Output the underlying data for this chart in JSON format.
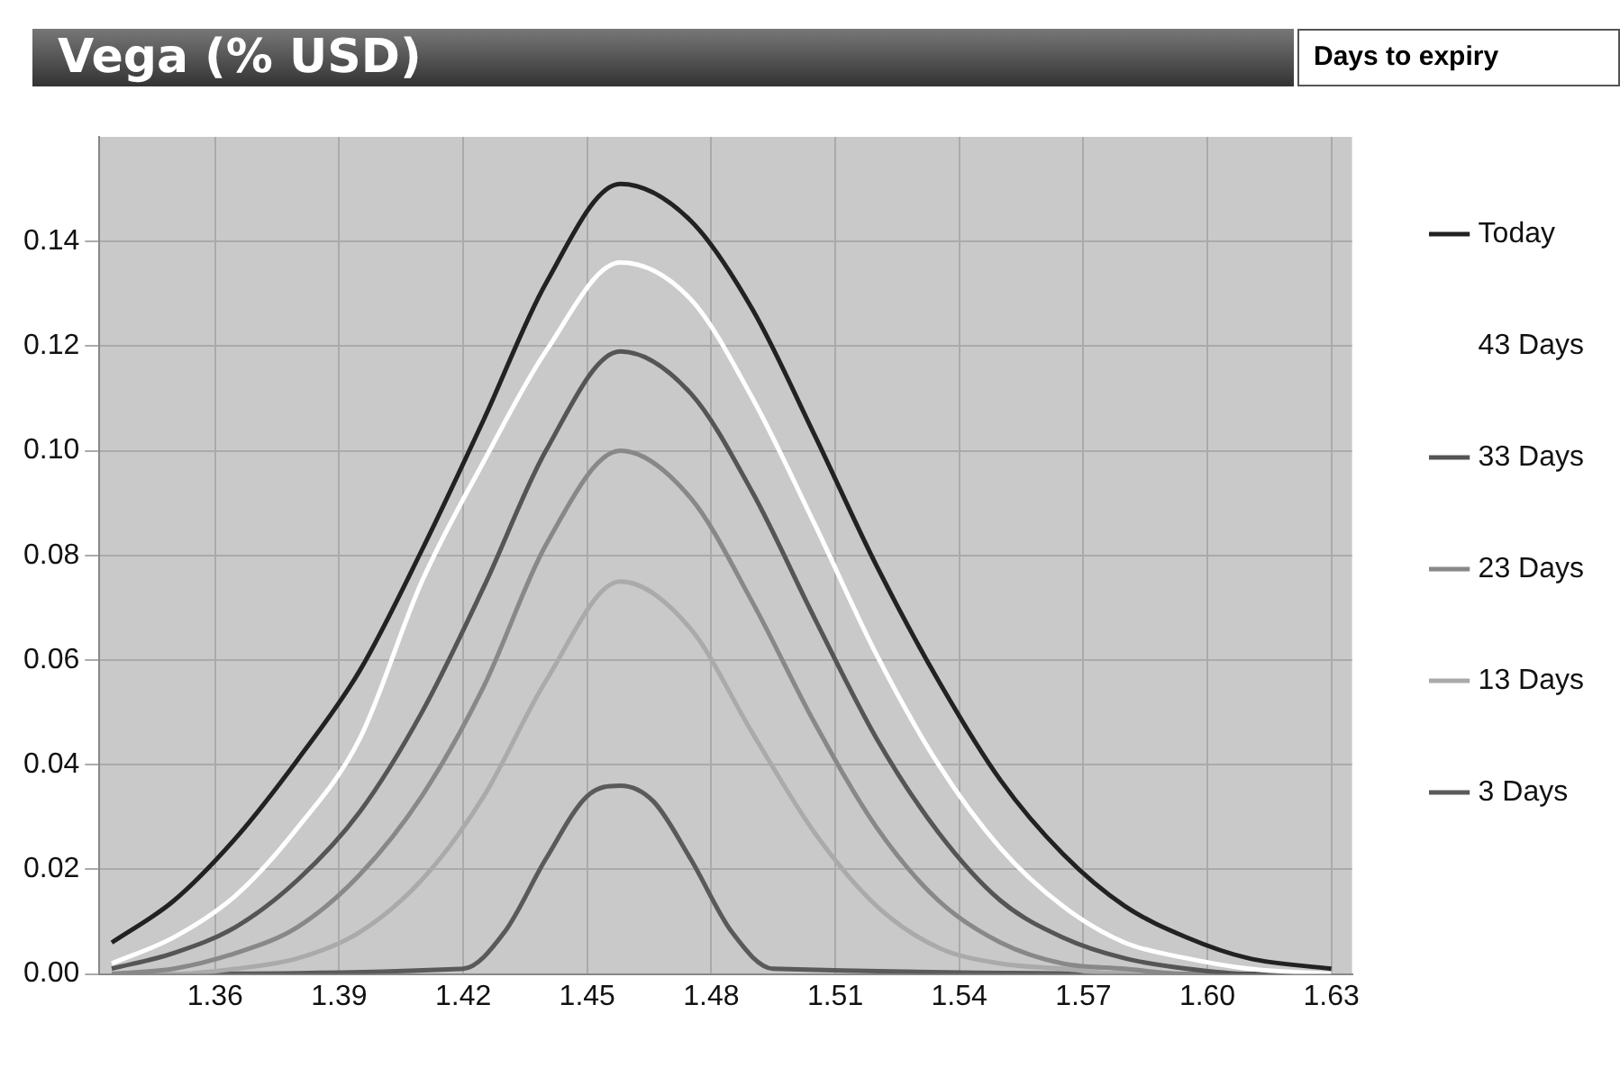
{
  "chart_data": {
    "type": "line",
    "title": "Vega (% USD)",
    "legend_title": "Days to expiry",
    "x": [
      1.335,
      1.35,
      1.365,
      1.38,
      1.395,
      1.41,
      1.425,
      1.44,
      1.458,
      1.475,
      1.49,
      1.505,
      1.52,
      1.535,
      1.55,
      1.565,
      1.58,
      1.595,
      1.61,
      1.63
    ],
    "series": [
      {
        "name": "Today",
        "color": "#222222",
        "values": [
          0.006,
          0.014,
          0.026,
          0.041,
          0.058,
          0.081,
          0.106,
          0.132,
          0.151,
          0.144,
          0.127,
          0.103,
          0.078,
          0.056,
          0.037,
          0.023,
          0.013,
          0.007,
          0.003,
          0.001
        ]
      },
      {
        "name": "43 Days",
        "color": "#ffffff",
        "values": [
          0.002,
          0.007,
          0.015,
          0.028,
          0.045,
          0.075,
          0.098,
          0.119,
          0.136,
          0.129,
          0.11,
          0.086,
          0.061,
          0.04,
          0.024,
          0.013,
          0.006,
          0.003,
          0.001,
          0.0
        ]
      },
      {
        "name": "33 Days",
        "color": "#555555",
        "values": [
          0.001,
          0.004,
          0.009,
          0.018,
          0.031,
          0.05,
          0.074,
          0.1,
          0.119,
          0.111,
          0.092,
          0.068,
          0.045,
          0.027,
          0.014,
          0.007,
          0.003,
          0.001,
          0.0,
          0.0
        ]
      },
      {
        "name": "23 Days",
        "color": "#888888",
        "values": [
          0.0,
          0.001,
          0.004,
          0.009,
          0.019,
          0.034,
          0.055,
          0.082,
          0.1,
          0.091,
          0.071,
          0.048,
          0.028,
          0.014,
          0.006,
          0.002,
          0.001,
          0.0,
          0.0,
          0.0
        ]
      },
      {
        "name": "13 Days",
        "color": "#aaaaaa",
        "values": [
          0.0,
          0.0,
          0.001,
          0.003,
          0.008,
          0.018,
          0.034,
          0.056,
          0.075,
          0.066,
          0.046,
          0.027,
          0.013,
          0.005,
          0.002,
          0.001,
          0.0,
          0.0,
          0.0,
          0.0
        ]
      },
      {
        "name": "3 Days",
        "color": "#5a5a5a",
        "x": [
          1.335,
          1.42,
          1.43,
          1.44,
          1.45,
          1.458,
          1.466,
          1.475,
          1.485,
          1.495,
          1.63
        ],
        "values": [
          0.0,
          0.001,
          0.008,
          0.022,
          0.034,
          0.036,
          0.033,
          0.022,
          0.008,
          0.001,
          0.0
        ]
      }
    ],
    "xlim": [
      1.332,
      1.635
    ],
    "xticks": [
      1.36,
      1.39,
      1.42,
      1.45,
      1.48,
      1.51,
      1.54,
      1.57,
      {
        "value": 1.6,
        "label": "1.60"
      },
      1.63
    ],
    "ylim": [
      0,
      0.16
    ],
    "yticks": [
      {
        "value": 0,
        "label": "0.00"
      },
      0.02,
      0.04,
      0.06,
      0.08,
      {
        "value": 0.1,
        "label": "0.10"
      },
      0.12,
      0.14
    ],
    "grid": true,
    "legend": "right",
    "marker": "none",
    "line_style": "solid"
  }
}
